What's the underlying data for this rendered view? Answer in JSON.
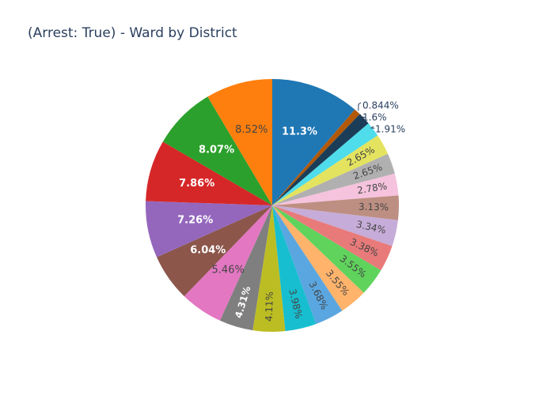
{
  "chart_data": {
    "type": "pie",
    "title": "(Arrest: True) - Ward by District",
    "labels_shown": "percent",
    "sort": "descending",
    "direction": "clockwise",
    "slices": [
      {
        "percent": 11.3,
        "label": "11.3%",
        "color": "#1f77b4"
      },
      {
        "percent": 0.844,
        "label": "0.844%",
        "color": "#b35806"
      },
      {
        "percent": 1.6,
        "label": "1.6%",
        "color": "#1b3d58"
      },
      {
        "percent": 1.91,
        "label": "1.91%",
        "color": "#4fdceb"
      },
      {
        "percent": 2.65,
        "label": "2.65%",
        "color": "#e3e35f"
      },
      {
        "percent": 2.65,
        "label": "2.65%",
        "color": "#b0b0b0"
      },
      {
        "percent": 2.78,
        "label": "2.78%",
        "color": "#f5c3dd"
      },
      {
        "percent": 3.13,
        "label": "3.13%",
        "color": "#bd8f82"
      },
      {
        "percent": 3.34,
        "label": "3.34%",
        "color": "#c6acd8"
      },
      {
        "percent": 3.38,
        "label": "3.38%",
        "color": "#e87a7a"
      },
      {
        "percent": 3.55,
        "label": "3.55%",
        "color": "#5fd35c"
      },
      {
        "percent": 3.55,
        "label": "3.55%",
        "color": "#ffb36b"
      },
      {
        "percent": 3.68,
        "label": "3.68%",
        "color": "#5aa6e0"
      },
      {
        "percent": 3.98,
        "label": "3.98%",
        "color": "#17becf"
      },
      {
        "percent": 4.11,
        "label": "4.11%",
        "color": "#bcbd22"
      },
      {
        "percent": 4.31,
        "label": "4.31%",
        "color": "#7f7f7f"
      },
      {
        "percent": 5.46,
        "label": "5.46%",
        "color": "#e377c2"
      },
      {
        "percent": 6.04,
        "label": "6.04%",
        "color": "#8c564b"
      },
      {
        "percent": 7.26,
        "label": "7.26%",
        "color": "#9467bd"
      },
      {
        "percent": 7.86,
        "label": "7.86%",
        "color": "#d62728"
      },
      {
        "percent": 8.07,
        "label": "8.07%",
        "color": "#2ca02c"
      },
      {
        "percent": 8.52,
        "label": "8.52%",
        "color": "#ff7f0e"
      }
    ]
  }
}
